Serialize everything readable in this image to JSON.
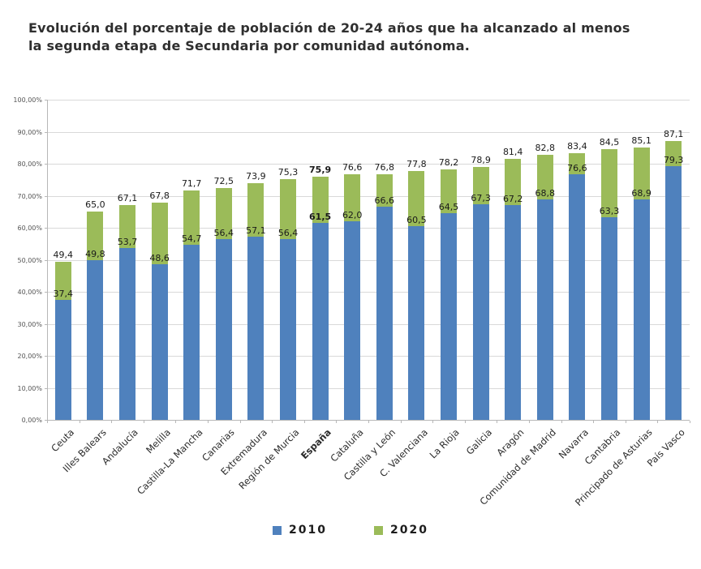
{
  "title": "Evolución del porcentaje de población de 20-24 años que ha alcanzado al menos la segunda etapa de Secundaria por comunidad autónoma.",
  "title_lines": [
    "Evolución del porcentaje de población de 20-24 años que ha alcanzado al menos",
    "la segunda etapa de Secundaria por comunidad autónoma."
  ],
  "chart_data": {
    "type": "bar",
    "stacked": true,
    "title": "Evolución del porcentaje de población de 20-24 años que ha alcanzado al menos la segunda etapa de Secundaria por comunidad autónoma.",
    "categories": [
      "Ceuta",
      "Illes Balears",
      "Andalucía",
      "Melilla",
      "Castilla-La Mancha",
      "Canarias",
      "Extremadura",
      "Región de Murcia",
      "España",
      "Cataluña",
      "Castilla y León",
      "C. Valenciana",
      "La Rioja",
      "Galicia",
      "Aragón",
      "Comunidad de Madrid",
      "Navarra",
      "Cantabria",
      "Principado de Asturias",
      "País Vasco"
    ],
    "series": [
      {
        "name": "2010",
        "color": "#4F81BD",
        "values": [
          37.4,
          49.8,
          53.7,
          48.6,
          54.7,
          56.4,
          57.1,
          56.4,
          61.5,
          62.0,
          66.6,
          60.5,
          64.5,
          67.3,
          67.2,
          68.8,
          76.6,
          63.3,
          68.9,
          79.3
        ],
        "labels": [
          "37,4",
          "49,8",
          "53,7",
          "48,6",
          "54,7",
          "56,4",
          "57,1",
          "56,4",
          "61,5",
          "62,0",
          "66,6",
          "60,5",
          "64,5",
          "67,3",
          "67,2",
          "68,8",
          "76,6",
          "63,3",
          "68,9",
          "79,3"
        ]
      },
      {
        "name": "2020",
        "color": "#9BBB59",
        "values": [
          49.4,
          65.0,
          67.1,
          67.8,
          71.7,
          72.5,
          73.9,
          75.3,
          75.9,
          76.6,
          76.8,
          77.8,
          78.2,
          78.9,
          81.4,
          82.8,
          83.4,
          84.5,
          85.1,
          87.1
        ],
        "labels": [
          "49,4",
          "65,0",
          "67,1",
          "67,8",
          "71,7",
          "72,5",
          "73,9",
          "75,3",
          "75,9",
          "76,6",
          "76,8",
          "77,8",
          "78,2",
          "78,9",
          "81,4",
          "82,8",
          "83,4",
          "84,5",
          "85,1",
          "87,1"
        ]
      }
    ],
    "emphasized_category": "España",
    "emphasized_index": 8,
    "xlabel": "",
    "ylabel": "",
    "ylim": [
      0,
      100
    ],
    "ytick_step": 10,
    "ytick_labels": [
      "0,00%",
      "10,00%",
      "20,00%",
      "30,00%",
      "40,00%",
      "50,00%",
      "60,00%",
      "70,00%",
      "80,00%",
      "90,00%",
      "100,00%"
    ],
    "grid": true,
    "legend_position": "bottom"
  },
  "legend": {
    "items": [
      {
        "label": "2010",
        "color": "#4F81BD"
      },
      {
        "label": "2020",
        "color": "#9BBB59"
      }
    ]
  },
  "colors": {
    "bar_2010": "#4F81BD",
    "bar_2020": "#9BBB59",
    "gridline": "#d9d9d9",
    "axis": "#b7b7b7",
    "title_text": "#2f2f2f",
    "label_text": "#1a1a1a",
    "background": "#ffffff"
  }
}
